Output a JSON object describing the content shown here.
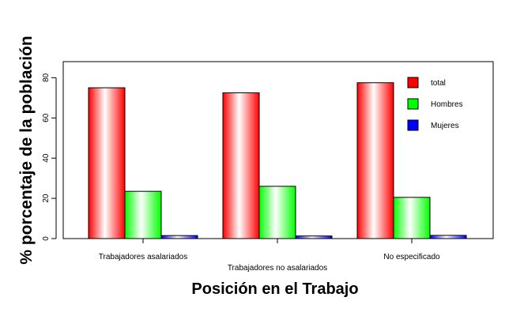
{
  "chart_data": {
    "type": "bar",
    "categories": [
      "Trabajadores asalariados",
      "Trabajadores no asalariados",
      "No especificado"
    ],
    "series": [
      {
        "name": "total",
        "values": [
          75.0,
          72.5,
          77.5
        ],
        "color": "#ff0000"
      },
      {
        "name": "Hombres",
        "values": [
          23.5,
          26.0,
          20.5
        ],
        "color": "#00ff00"
      },
      {
        "name": "Mujeres",
        "values": [
          1.5,
          1.3,
          1.6
        ],
        "color": "#0000ff"
      }
    ],
    "title": "",
    "xlabel": "Posición en el Trabajo",
    "ylabel": "% porcentaje de la población",
    "ylim": [
      0,
      88
    ],
    "yticks": [
      0,
      20,
      40,
      60,
      80
    ],
    "legend_position": "top-right",
    "grid": false,
    "bar_style": "gradient-shaded"
  }
}
